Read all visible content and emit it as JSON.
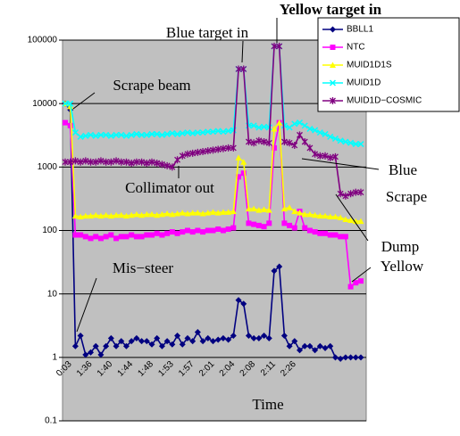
{
  "chart_data": {
    "type": "line",
    "x_label": "Time",
    "annotations": [
      "Yellow target in",
      "Blue target in",
      "Scrape beam",
      "Collimator out",
      "Mis−steer",
      "Blue",
      "Scrape",
      "Dump",
      "Yellow"
    ],
    "categories": [
      null,
      "0:03",
      null,
      null,
      null,
      "1:36",
      null,
      null,
      null,
      "1:40",
      null,
      null,
      null,
      "1:44",
      null,
      null,
      null,
      "1:48",
      null,
      null,
      null,
      "1:53",
      null,
      null,
      null,
      "1:57",
      null,
      null,
      null,
      "2:01",
      null,
      null,
      null,
      "2:04",
      null,
      null,
      null,
      "2:08",
      null,
      null,
      null,
      "2:11",
      null,
      null,
      null,
      "2:26",
      null,
      null,
      null,
      null,
      null,
      null,
      null,
      null,
      null,
      null,
      null,
      null,
      null
    ],
    "ylim": [
      0.1,
      100000
    ],
    "yticks": [
      0.1,
      1,
      10,
      100,
      1000,
      10000,
      100000
    ],
    "log_scale": true,
    "grid": true,
    "legend": "top-right",
    "series": [
      {
        "name": "BBLL1",
        "color": "#000080",
        "marker": "diamond",
        "values": [
          10000,
          8000,
          1.5,
          2.2,
          1.1,
          1.2,
          1.5,
          1.1,
          1.5,
          2,
          1.5,
          1.8,
          1.5,
          1.8,
          2,
          1.8,
          1.8,
          1.6,
          2,
          1.5,
          1.8,
          1.6,
          2.2,
          1.6,
          2,
          1.8,
          2.5,
          1.8,
          2,
          1.8,
          1.9,
          2,
          1.9,
          2.2,
          8,
          7,
          2.2,
          2,
          2,
          2.2,
          2,
          23,
          27,
          2.2,
          1.5,
          1.8,
          1.3,
          1.5,
          1.5,
          1.3,
          1.5,
          1.4,
          1.5,
          1,
          0.95,
          1,
          1,
          1,
          1
        ]
      },
      {
        "name": "NTC",
        "color": "#ff00ff",
        "marker": "square",
        "values": [
          5000,
          4500,
          85,
          85,
          80,
          75,
          80,
          75,
          80,
          85,
          75,
          80,
          80,
          85,
          80,
          80,
          85,
          85,
          90,
          85,
          90,
          95,
          90,
          95,
          100,
          95,
          100,
          95,
          100,
          100,
          105,
          100,
          105,
          110,
          700,
          800,
          130,
          125,
          120,
          115,
          130,
          2000,
          5000,
          130,
          120,
          110,
          200,
          110,
          100,
          95,
          90,
          90,
          85,
          85,
          80,
          80,
          13,
          15,
          16
        ]
      },
      {
        "name": "MUID1D1S",
        "color": "#ffff00",
        "marker": "triangle",
        "values": [
          10000,
          9000,
          170,
          165,
          170,
          170,
          175,
          170,
          175,
          170,
          175,
          175,
          170,
          175,
          180,
          175,
          180,
          180,
          175,
          180,
          185,
          180,
          185,
          190,
          185,
          190,
          190,
          185,
          190,
          195,
          190,
          195,
          195,
          200,
          1400,
          1200,
          220,
          220,
          210,
          215,
          210,
          4000,
          5000,
          220,
          230,
          200,
          190,
          180,
          180,
          175,
          170,
          170,
          165,
          165,
          160,
          150,
          145,
          140,
          140
        ]
      },
      {
        "name": "MUID1D",
        "color": "#00ffff",
        "marker": "x",
        "values": [
          10000,
          10000,
          3500,
          3000,
          3100,
          3200,
          3100,
          3200,
          3200,
          3100,
          3200,
          3200,
          3100,
          3200,
          3300,
          3200,
          3200,
          3300,
          3300,
          3200,
          3300,
          3400,
          3300,
          3400,
          3500,
          3400,
          3500,
          3500,
          3600,
          3600,
          3700,
          3600,
          3700,
          3800,
          35000,
          35000,
          4500,
          4500,
          4200,
          4300,
          4200,
          80000,
          80000,
          4500,
          4200,
          4800,
          5000,
          4500,
          4000,
          3800,
          3500,
          3300,
          3000,
          2800,
          2600,
          2500,
          2400,
          2300,
          2300
        ]
      },
      {
        "name": "MUID1D−COSMIC",
        "color": "#800080",
        "marker": "star",
        "values": [
          1200,
          1200,
          1250,
          1200,
          1250,
          1200,
          1200,
          1250,
          1200,
          1200,
          1250,
          1200,
          1200,
          1150,
          1200,
          1200,
          1150,
          1200,
          1150,
          1100,
          1050,
          1000,
          1300,
          1500,
          1600,
          1650,
          1700,
          1750,
          1800,
          1850,
          1900,
          1950,
          2000,
          2000,
          35000,
          35000,
          2500,
          2400,
          2600,
          2500,
          2400,
          80000,
          80000,
          2500,
          2400,
          2200,
          3200,
          2500,
          2000,
          1600,
          1500,
          1500,
          1400,
          1450,
          380,
          350,
          380,
          400,
          400
        ]
      }
    ]
  }
}
